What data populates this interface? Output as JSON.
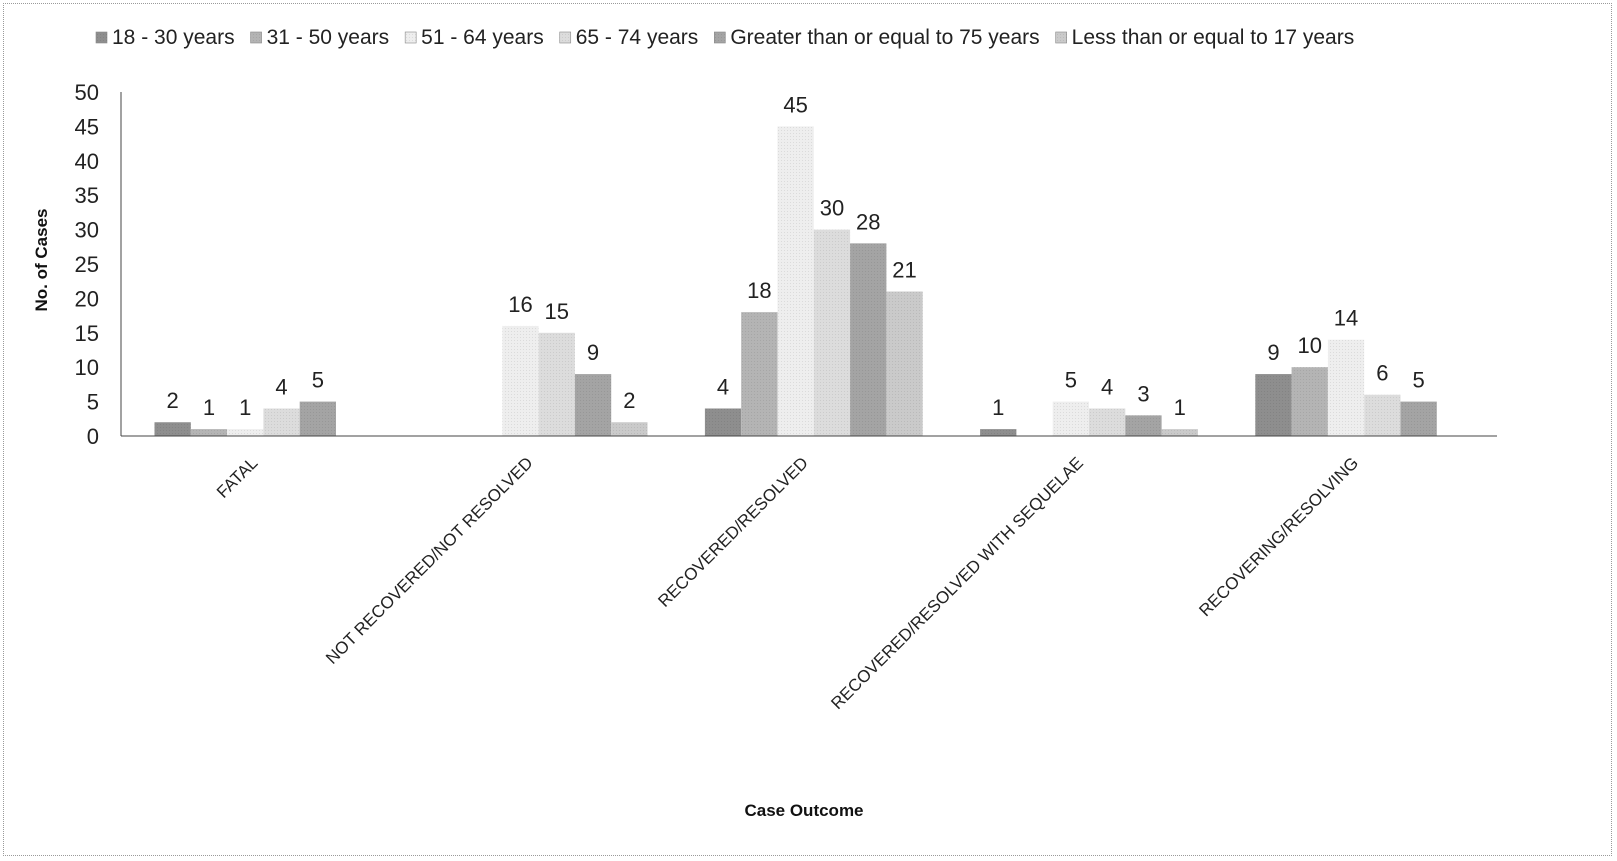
{
  "chart_data": {
    "type": "bar",
    "title": "",
    "xlabel": "Case Outcome",
    "ylabel": "No. of Cases",
    "ylim": [
      0,
      50
    ],
    "yticks": [
      0,
      5,
      10,
      15,
      20,
      25,
      30,
      35,
      40,
      45,
      50
    ],
    "grid": false,
    "legend_position": "top",
    "categories": [
      "FATAL",
      "NOT RECOVERED/NOT RESOLVED",
      "RECOVERED/RESOLVED",
      "RECOVERED/RESOLVED WITH SEQUELAE",
      "RECOVERING/RESOLVING"
    ],
    "series": [
      {
        "name": "18 - 30 years",
        "color": "#8e8e8e",
        "values": [
          2,
          0,
          4,
          1,
          9
        ],
        "labels": [
          "2",
          "",
          "4",
          "1",
          "9"
        ]
      },
      {
        "name": "31 - 50 years",
        "color": "#b4b4b4",
        "values": [
          1,
          0,
          18,
          0,
          10
        ],
        "labels": [
          "1",
          "",
          "18",
          "",
          "10"
        ]
      },
      {
        "name": "51 - 64 years",
        "color": "#eeeeee",
        "values": [
          1,
          16,
          45,
          5,
          14
        ],
        "labels": [
          "1",
          "16",
          "45",
          "5",
          "14"
        ]
      },
      {
        "name": "65 - 74 years",
        "color": "#dcdcdc",
        "values": [
          4,
          15,
          30,
          4,
          6
        ],
        "labels": [
          "4",
          "15",
          "30",
          "4",
          "6"
        ]
      },
      {
        "name": "Greater than or equal to 75 years",
        "color": "#a4a4a4",
        "values": [
          5,
          9,
          28,
          3,
          5
        ],
        "labels": [
          "5",
          "9",
          "28",
          "3",
          "5"
        ]
      },
      {
        "name": "Less than or equal to 17 years",
        "color": "#cacaca",
        "values": [
          0,
          2,
          21,
          1,
          0
        ],
        "labels": [
          "",
          "2",
          "21",
          "1",
          ""
        ]
      }
    ]
  }
}
